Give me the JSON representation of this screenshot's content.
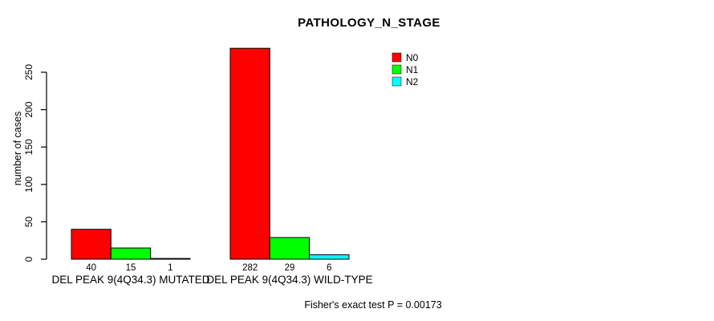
{
  "title": "PATHOLOGY_N_STAGE",
  "footer": "Fisher's exact test P = 0.00173",
  "colors": {
    "n0": "#ff0000",
    "n1": "#00ff00",
    "n2": "#00ffff",
    "axis": "#000000",
    "background": "#ffffff"
  },
  "chart_data": {
    "type": "bar",
    "title": "PATHOLOGY_N_STAGE",
    "xlabel": "",
    "ylabel": "number of cases",
    "yticks": [
      0,
      50,
      100,
      150,
      200,
      250
    ],
    "ylim": [
      0,
      285
    ],
    "grid": false,
    "legend_position": "top-right",
    "categories": [
      "DEL PEAK 9(4Q34.3) MUTATED",
      "DEL PEAK 9(4Q34.3) WILD-TYPE"
    ],
    "series": [
      {
        "name": "N0",
        "color": "#ff0000",
        "values": [
          40,
          282
        ]
      },
      {
        "name": "N1",
        "color": "#00ff00",
        "values": [
          15,
          29
        ]
      },
      {
        "name": "N2",
        "color": "#00ffff",
        "values": [
          1,
          6
        ]
      }
    ],
    "bar_value_labels": [
      [
        "40",
        "15",
        "1"
      ],
      [
        "282",
        "29",
        "6"
      ]
    ],
    "annotation": "Fisher's exact test P = 0.00173"
  }
}
